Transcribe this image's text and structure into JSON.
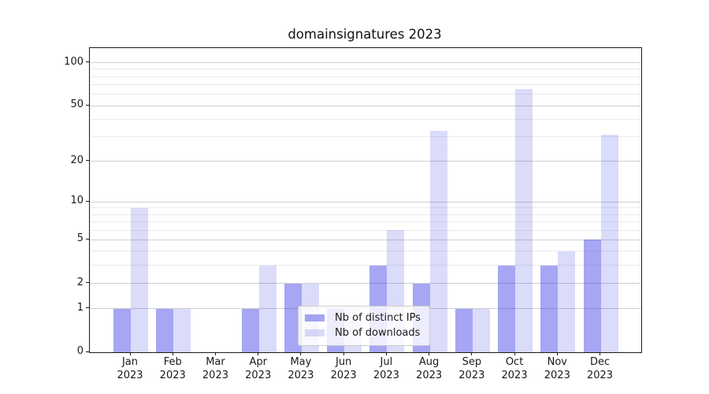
{
  "title": "domainsignatures 2023",
  "legend": {
    "items": [
      {
        "label": "Nb of distinct IPs"
      },
      {
        "label": "Nb of downloads"
      }
    ]
  },
  "chart_data": {
    "type": "bar",
    "title": "domainsignatures 2023",
    "scale": "log1p",
    "categories": [
      "Jan",
      "Feb",
      "Mar",
      "Apr",
      "May",
      "Jun",
      "Jul",
      "Aug",
      "Sep",
      "Oct",
      "Nov",
      "Dec"
    ],
    "category_year": "2023",
    "series": [
      {
        "name": "Nb of distinct IPs",
        "color": "rgba(42,42,228,0.42)",
        "values": [
          1,
          1,
          0,
          1,
          2,
          1,
          3,
          2,
          1,
          3,
          3,
          5
        ]
      },
      {
        "name": "Nb of downloads",
        "color": "rgba(42,42,228,0.17)",
        "values": [
          9,
          1,
          0,
          3,
          2,
          1,
          6,
          33,
          1,
          65,
          4,
          31
        ]
      }
    ],
    "y_major_ticks": [
      0,
      1,
      2,
      5,
      10,
      20,
      50,
      100
    ],
    "y_minor_gridlines": [
      3,
      4,
      6,
      7,
      8,
      9,
      30,
      40,
      60,
      70,
      80,
      90
    ],
    "ylim": [
      0,
      126
    ],
    "xlabel": "",
    "ylabel": "",
    "grid": true,
    "legend_position": "lower center",
    "colors": {
      "major_grid": "#cfcfcf",
      "minor_grid": "#ebebeb",
      "axis": "#1a1a1a"
    }
  }
}
